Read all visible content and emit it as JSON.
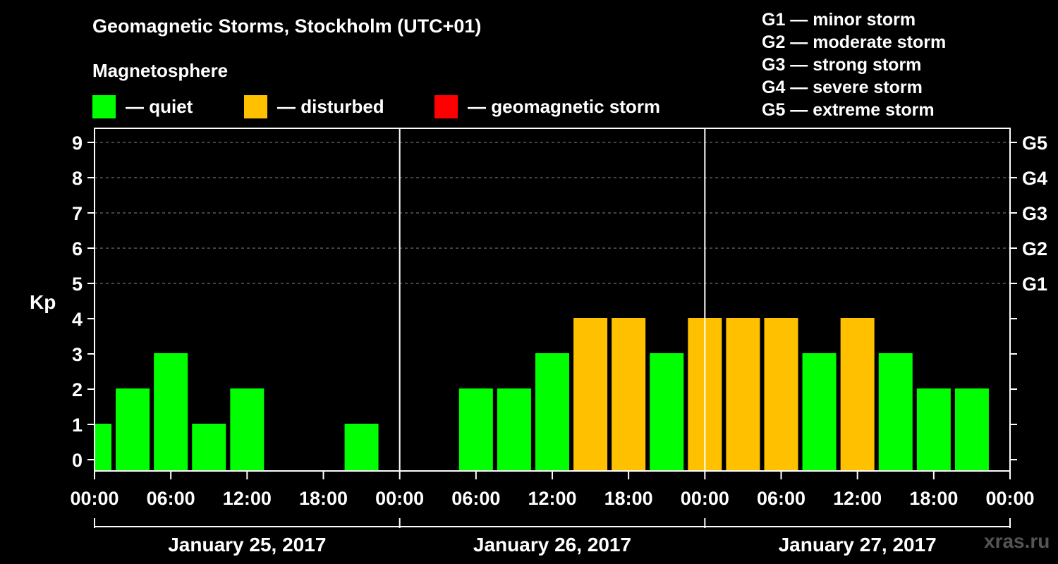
{
  "header": {
    "title": "Geomagnetic Storms, Stockholm (UTC+01)",
    "subtitle": "Magnetosphere"
  },
  "legend": [
    {
      "label": "— quiet",
      "color": "#00ff00"
    },
    {
      "label": "— disturbed",
      "color": "#ffc000"
    },
    {
      "label": "— geomagnetic storm",
      "color": "#ff0000"
    }
  ],
  "storm_scale": [
    "G1 — minor storm",
    "G2 — moderate storm",
    "G3 — strong storm",
    "G4 — severe storm",
    "G5 — extreme storm"
  ],
  "watermark": "xras.ru",
  "chart_data": {
    "type": "bar",
    "ylabel": "Kp",
    "ylim": [
      0,
      9
    ],
    "y_ticks": [
      "0",
      "1",
      "2",
      "3",
      "4",
      "5",
      "6",
      "7",
      "8",
      "9"
    ],
    "right_axis_labels": [
      {
        "kp": 5,
        "label": "G1"
      },
      {
        "kp": 6,
        "label": "G2"
      },
      {
        "kp": 7,
        "label": "G3"
      },
      {
        "kp": 8,
        "label": "G4"
      },
      {
        "kp": 9,
        "label": "G5"
      }
    ],
    "grid": true,
    "x_tick_labels": [
      "00:00",
      "06:00",
      "12:00",
      "18:00",
      "00:00",
      "06:00",
      "12:00",
      "18:00",
      "00:00",
      "06:00",
      "12:00",
      "18:00",
      "00:00"
    ],
    "days": [
      "January 25, 2017",
      "January 26, 2017",
      "January 27, 2017"
    ],
    "series": [
      {
        "x": [
          "00:00",
          "03:00",
          "06:00",
          "09:00",
          "12:00",
          "15:00",
          "18:00",
          "21:00",
          "00:00",
          "03:00",
          "06:00",
          "09:00",
          "12:00",
          "15:00",
          "18:00",
          "21:00",
          "00:00",
          "03:00",
          "06:00",
          "09:00",
          "12:00",
          "15:00",
          "18:00",
          "21:00"
        ],
        "values": [
          1,
          2,
          3,
          1,
          2,
          0,
          0,
          1,
          0,
          0,
          2,
          2,
          3,
          4,
          4,
          3,
          4,
          4,
          4,
          3,
          4,
          3,
          2,
          2
        ],
        "status": [
          "quiet",
          "quiet",
          "quiet",
          "quiet",
          "quiet",
          "quiet",
          "quiet",
          "quiet",
          "quiet",
          "quiet",
          "quiet",
          "quiet",
          "quiet",
          "disturbed",
          "disturbed",
          "quiet",
          "disturbed",
          "disturbed",
          "disturbed",
          "quiet",
          "disturbed",
          "quiet",
          "quiet",
          "quiet"
        ]
      }
    ],
    "colors": {
      "quiet": "#00ff00",
      "disturbed": "#ffc000",
      "storm": "#ff0000"
    }
  }
}
